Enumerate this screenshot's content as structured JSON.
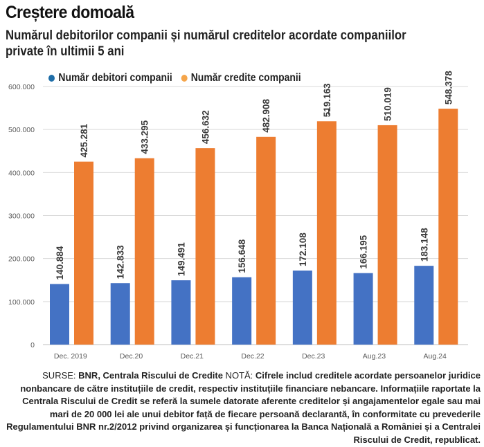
{
  "headline": "Creștere domoală",
  "subtitle": "Numărul debitorilor companii și numărul creditelor acordate companiilor private în ultimii 5 ani",
  "colors": {
    "series1": "#4472c4",
    "series2": "#ed7d31",
    "legend1_dot": "#1f6ea8",
    "legend2_dot": "#f5a54a",
    "grid": "#d9d9d9",
    "axis": "#bfbfbf"
  },
  "chart_data": {
    "type": "bar",
    "title": "Numărul debitorilor companii și numărul creditelor acordate companiilor private în ultimii 5 ani",
    "categories": [
      "Dec. 2019",
      "Dec.20",
      "Dec.21",
      "Dec.22",
      "Dec.23",
      "Aug.23",
      "Aug.24"
    ],
    "series": [
      {
        "name": "Număr debitori companii",
        "values": [
          140884,
          142833,
          149491,
          156648,
          172108,
          166195,
          183148
        ],
        "labels": [
          "140.884",
          "142.833",
          "149.491",
          "156.648",
          "172.108",
          "166.195",
          "183.148"
        ]
      },
      {
        "name": "Număr credite companii",
        "values": [
          425281,
          433295,
          456632,
          482908,
          519163,
          510019,
          548378
        ],
        "labels": [
          "425.281",
          "433.295",
          "456.632",
          "482.908",
          "5̶19.163",
          "510.019",
          "548.378"
        ]
      }
    ],
    "ylim": [
      0,
      600000
    ],
    "yticks": [
      0,
      100000,
      200000,
      300000,
      400000,
      500000,
      600000
    ],
    "ytick_labels": [
      "0",
      "100.000",
      "200.000",
      "300.000",
      "400.000",
      "500.000",
      "600.000"
    ],
    "xlabel": "",
    "ylabel": "",
    "legend_position": "top-left",
    "grid": true
  },
  "footnote": {
    "source_prefix": "SURSE: ",
    "source": "BNR, Centrala Riscului de Credite",
    "note_prefix": "  NOTĂ: ",
    "note": "Cifrele includ creditele acordate persoanelor juridice nonbancare de către instituțiile de credit, respectiv instituțiile financiare nebancare. Informațiile raportate la Centrala Riscului de Credit se referă la sumele datorate aferente creditelor și angajamentelor egale sau mai mari de 20 000 lei ale unui debitor față de fiecare persoană declarantă, în conformitate cu prevederile Regulamentului BNR nr.2/2012 privind organizarea și funcționarea la Banca Națională a României și a Centralei Riscului de Credit, republicat."
  }
}
